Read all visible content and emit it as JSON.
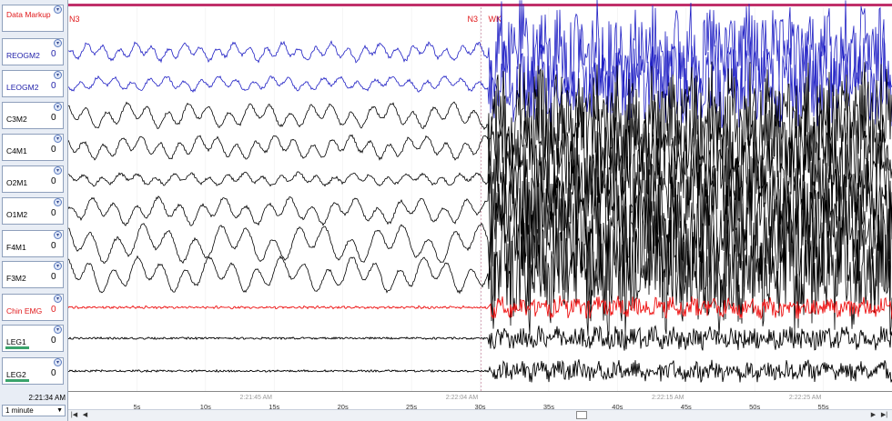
{
  "channels": [
    {
      "name": "Data Markup",
      "zero": "",
      "color": "#e0191b",
      "bar": ""
    },
    {
      "name": "REOGM2",
      "zero": "0",
      "color": "#2222aa",
      "bar": ""
    },
    {
      "name": "LEOGM2",
      "zero": "0",
      "color": "#2222aa",
      "bar": ""
    },
    {
      "name": "C3M2",
      "zero": "0",
      "color": "#000000",
      "bar": ""
    },
    {
      "name": "C4M1",
      "zero": "0",
      "color": "#000000",
      "bar": ""
    },
    {
      "name": "O2M1",
      "zero": "0",
      "color": "#000000",
      "bar": ""
    },
    {
      "name": "O1M2",
      "zero": "0",
      "color": "#000000",
      "bar": ""
    },
    {
      "name": "F4M1",
      "zero": "0",
      "color": "#000000",
      "bar": ""
    },
    {
      "name": "F3M2",
      "zero": "0",
      "color": "#000000",
      "bar": ""
    },
    {
      "name": "Chin EMG",
      "zero": "0",
      "color": "#e0191b",
      "bar": ""
    },
    {
      "name": "LEG1",
      "zero": "0",
      "color": "#000000",
      "bar": "#3aa36b"
    },
    {
      "name": "LEG2",
      "zero": "0",
      "color": "#000000",
      "bar": "#3aa36b"
    }
  ],
  "markers": [
    {
      "label": "N3",
      "t": 0
    },
    {
      "label": "N3",
      "t": 29.6
    },
    {
      "label": "WK",
      "t": 30.6
    }
  ],
  "axis": {
    "ticks": [
      "5s",
      "10s",
      "15s",
      "20s",
      "25s",
      "30s",
      "35s",
      "40s",
      "45s",
      "50s",
      "55s"
    ],
    "clock": [
      "2:21:45 AM",
      "2:22:04 AM",
      "2:22:15 AM",
      "2:22:25 AM"
    ]
  },
  "footer": {
    "start_time": "2:21:34 AM",
    "window": "1 minute"
  },
  "colors": {
    "eog": "#1f1fc4",
    "eeg": "#000000",
    "emg": "#ee1111",
    "markup": "#c0306a",
    "wake_line": "#c0306a"
  },
  "icons": [
    "pin-icon",
    "dropdown-arrow-icon",
    "first-page-icon",
    "prev-page-icon",
    "next-page-icon",
    "last-page-icon"
  ]
}
